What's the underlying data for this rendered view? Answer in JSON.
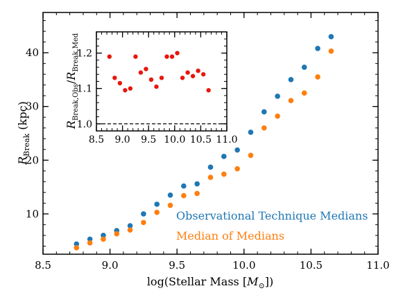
{
  "chart_data": [
    {
      "type": "scatter",
      "title": "",
      "xlabel": "log(Stellar Mass [M⊙])",
      "ylabel": "R_Break (kpc)",
      "xlim": [
        8.5,
        11.0
      ],
      "ylim": [
        2.5,
        47.5
      ],
      "xticks": [
        8.5,
        9.0,
        9.5,
        10.0,
        10.5,
        11.0
      ],
      "xtick_labels": [
        "8.5",
        "9.0",
        "9.5",
        "10.0",
        "10.5",
        "11.0"
      ],
      "yticks": [
        10,
        20,
        30,
        40
      ],
      "ytick_labels": [
        "10",
        "20",
        "30",
        "40"
      ],
      "legend_placement": "lower-right",
      "series": [
        {
          "name": "Observational Technique Medians",
          "color": "#1f77b4",
          "x": [
            8.75,
            8.85,
            8.95,
            9.05,
            9.15,
            9.25,
            9.35,
            9.45,
            9.55,
            9.65,
            9.75,
            9.85,
            9.95,
            10.05,
            10.15,
            10.25,
            10.35,
            10.45,
            10.55,
            10.65
          ],
          "y": [
            4.4,
            5.3,
            6.0,
            6.9,
            7.8,
            10.0,
            11.8,
            13.5,
            15.2,
            15.6,
            18.7,
            20.7,
            21.9,
            25.2,
            29.0,
            31.9,
            35.0,
            37.3,
            40.8,
            43.0
          ]
        },
        {
          "name": "Median of Medians",
          "color": "#ff7f0e",
          "x": [
            8.75,
            8.85,
            8.95,
            9.05,
            9.15,
            9.25,
            9.35,
            9.45,
            9.55,
            9.65,
            9.75,
            9.85,
            9.95,
            10.05,
            10.15,
            10.25,
            10.35,
            10.45,
            10.55,
            10.65
          ],
          "y": [
            3.7,
            4.6,
            5.3,
            6.3,
            7.0,
            8.4,
            10.3,
            11.6,
            13.4,
            13.8,
            16.8,
            17.4,
            18.4,
            20.9,
            26.0,
            28.2,
            31.1,
            32.5,
            35.5,
            40.3
          ]
        }
      ]
    },
    {
      "type": "scatter",
      "title": "",
      "xlabel": "",
      "ylabel": "R_Break,Obs / R_Break,Med",
      "xlim": [
        8.5,
        11.0
      ],
      "ylim": [
        0.98,
        1.26
      ],
      "xticks": [
        8.5,
        9.0,
        9.5,
        10.0,
        10.5,
        11.0
      ],
      "xtick_labels": [
        "8.5",
        "9.0",
        "9.5",
        "10.0",
        "10.5",
        "11.0"
      ],
      "yticks": [
        1.0,
        1.1,
        1.2
      ],
      "ytick_labels": [
        "1.0",
        "1.1",
        "1.2"
      ],
      "reference_line": {
        "y": 1.0,
        "style": "dashed"
      },
      "series": [
        {
          "color": "#e8160c",
          "x": [
            8.75,
            8.85,
            8.95,
            9.05,
            9.15,
            9.25,
            9.35,
            9.45,
            9.55,
            9.65,
            9.75,
            9.85,
            9.95,
            10.05,
            10.15,
            10.25,
            10.35,
            10.45,
            10.55,
            10.65
          ],
          "y": [
            1.19,
            1.13,
            1.115,
            1.095,
            1.1,
            1.19,
            1.145,
            1.155,
            1.125,
            1.105,
            1.13,
            1.19,
            1.19,
            1.2,
            1.13,
            1.145,
            1.135,
            1.15,
            1.14,
            1.095
          ]
        }
      ]
    }
  ],
  "labels": {
    "main_ylabel_main": "R",
    "main_ylabel_sub": "Break",
    "main_ylabel_unit": " (kpc)",
    "main_xlabel_pre": "log(Stellar Mass [",
    "main_xlabel_m": "M",
    "main_xlabel_sun": "⊙",
    "main_xlabel_post": "])",
    "inset_ylabel_r1": "R",
    "inset_ylabel_sub1": "Break,Obs",
    "inset_ylabel_slash": "/",
    "inset_ylabel_r2": "R",
    "inset_ylabel_sub2": "Break,Med",
    "legend_obs": "Observational Technique Medians",
    "legend_med": "Median of Medians"
  }
}
